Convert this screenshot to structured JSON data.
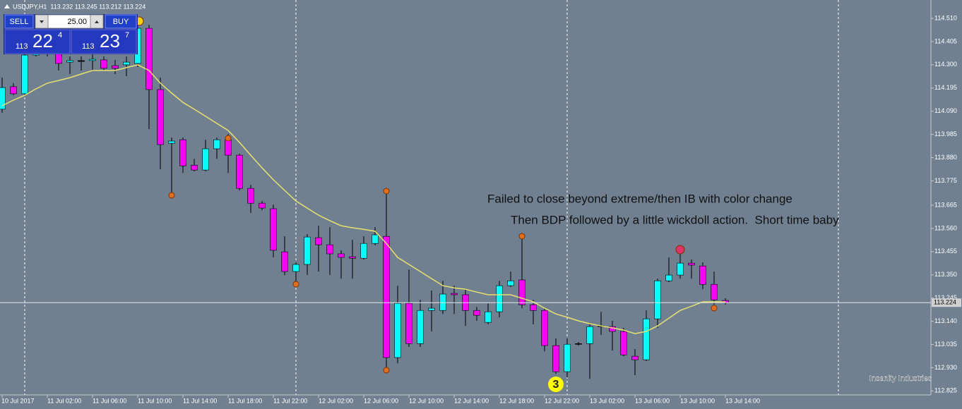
{
  "header": "USDJPY,H1  113.232 113.245 113.212 113.224",
  "trade_panel": {
    "sell": "SELL",
    "buy": "BUY",
    "lots": "25.00",
    "bid": {
      "prefix": "113",
      "big": "22",
      "pip": "4"
    },
    "ask": {
      "prefix": "113",
      "big": "23",
      "pip": "7"
    }
  },
  "watermark": "Insanity Industries",
  "marker_label": "3",
  "chart_data": {
    "type": "candlestick",
    "annotations": [
      "Failed to close beyond extreme/then IB with color change",
      "Then BDP followed by a little wickdoll action.  Short time baby"
    ],
    "categories": [
      "10 Jul 2017",
      null,
      null,
      null,
      "11 Jul 02:00",
      null,
      null,
      null,
      "11 Jul 06:00",
      null,
      null,
      null,
      "11 Jul 10:00",
      null,
      null,
      null,
      "11 Jul 14:00",
      null,
      null,
      null,
      "11 Jul 18:00",
      null,
      null,
      null,
      "11 Jul 22:00",
      null,
      null,
      null,
      "12 Jul 02:00",
      null,
      null,
      null,
      "12 Jul 06:00",
      null,
      null,
      null,
      "12 Jul 10:00",
      null,
      null,
      null,
      "12 Jul 14:00",
      null,
      null,
      null,
      "12 Jul 18:00",
      null,
      null,
      null,
      "12 Jul 22:00",
      null,
      null,
      null,
      "13 Jul 02:00",
      null,
      null,
      null,
      "13 Jul 06:00",
      null,
      null,
      null,
      "13 Jul 10:00",
      null,
      null,
      null,
      "13 Jul 14:00"
    ],
    "open": [
      114.099,
      114.201,
      114.169,
      114.344,
      114.386,
      114.354,
      114.312,
      114.315,
      114.319,
      114.322,
      114.296,
      114.3,
      114.306,
      114.465,
      114.188,
      113.945,
      113.961,
      113.846,
      113.824,
      113.92,
      113.961,
      113.891,
      113.741,
      113.674,
      113.649,
      113.454,
      113.365,
      113.397,
      113.518,
      113.486,
      113.445,
      113.432,
      113.425,
      113.492,
      113.524,
      112.976,
      113.221,
      113.039,
      113.189,
      113.189,
      113.266,
      113.26,
      113.189,
      113.135,
      113.183,
      113.301,
      113.327,
      113.215,
      113.189,
      113.03,
      112.912,
      113.036,
      113.039,
      113.119,
      113.116,
      113.094,
      112.982,
      112.966,
      113.151,
      113.323,
      113.349,
      113.403,
      113.39,
      113.307,
      113.234
    ],
    "high": [
      114.242,
      114.217,
      114.354,
      114.418,
      114.418,
      114.37,
      114.338,
      114.338,
      114.354,
      114.338,
      114.322,
      114.338,
      114.497,
      114.481,
      114.242,
      113.971,
      113.971,
      113.875,
      113.961,
      113.971,
      113.987,
      113.898,
      113.757,
      113.684,
      113.668,
      113.524,
      113.406,
      113.534,
      113.572,
      113.566,
      113.461,
      113.508,
      113.524,
      113.566,
      113.732,
      113.301,
      113.374,
      113.237,
      113.279,
      113.323,
      113.301,
      113.285,
      113.205,
      113.221,
      113.323,
      113.365,
      113.524,
      113.237,
      113.196,
      113.062,
      113.062,
      113.046,
      113.126,
      113.183,
      113.142,
      113.11,
      113.014,
      113.189,
      113.333,
      113.429,
      113.461,
      113.419,
      113.406,
      113.365,
      113.244
    ],
    "low": [
      114.083,
      114.162,
      114.162,
      114.338,
      114.338,
      114.274,
      114.258,
      114.274,
      114.274,
      114.274,
      114.258,
      114.248,
      114.29,
      114.009,
      113.827,
      113.716,
      113.811,
      113.818,
      113.818,
      113.875,
      113.811,
      113.732,
      113.63,
      113.642,
      113.429,
      113.349,
      113.317,
      113.349,
      113.365,
      113.349,
      113.333,
      113.333,
      113.419,
      113.483,
      112.918,
      112.95,
      113.024,
      113.024,
      113.094,
      113.173,
      113.173,
      113.119,
      113.142,
      113.126,
      113.158,
      113.295,
      113.199,
      113.126,
      113.004,
      112.902,
      112.886,
      113.03,
      112.88,
      113.078,
      113.008,
      112.982,
      112.896,
      112.96,
      113.11,
      113.317,
      113.333,
      113.333,
      113.285,
      113.215,
      113.215
    ],
    "close": [
      114.197,
      114.169,
      114.344,
      114.386,
      114.354,
      114.306,
      114.319,
      114.319,
      114.325,
      114.284,
      114.284,
      114.312,
      114.465,
      114.188,
      113.939,
      113.955,
      113.843,
      113.824,
      113.92,
      113.961,
      113.891,
      113.741,
      113.674,
      113.652,
      113.461,
      113.365,
      113.397,
      113.521,
      113.486,
      113.445,
      113.429,
      113.425,
      113.492,
      113.531,
      112.976,
      113.221,
      113.039,
      113.189,
      113.199,
      113.263,
      113.26,
      113.189,
      113.167,
      113.183,
      113.301,
      113.323,
      113.215,
      113.189,
      113.03,
      112.912,
      113.036,
      113.039,
      113.116,
      113.116,
      113.094,
      112.988,
      112.966,
      113.151,
      113.323,
      113.349,
      113.403,
      113.394,
      113.307,
      113.237,
      113.224
    ],
    "ma": [
      114.115,
      114.14,
      114.162,
      114.191,
      114.217,
      114.229,
      114.242,
      114.258,
      114.274,
      114.274,
      114.274,
      114.287,
      114.3,
      114.274,
      114.217,
      114.172,
      114.13,
      114.099,
      114.067,
      114.035,
      114.003,
      113.949,
      113.891,
      113.834,
      113.78,
      113.732,
      113.684,
      113.652,
      113.62,
      113.595,
      113.572,
      113.563,
      113.556,
      113.547,
      113.492,
      113.429,
      113.397,
      113.365,
      113.333,
      113.301,
      113.291,
      113.285,
      113.272,
      113.26,
      113.26,
      113.26,
      113.244,
      113.228,
      113.199,
      113.173,
      113.158,
      113.142,
      113.129,
      113.119,
      113.11,
      113.1,
      113.084,
      113.094,
      113.119,
      113.154,
      113.189,
      113.208,
      113.228,
      113.228,
      113.228
    ],
    "up_color": "#00ffff",
    "down_color": "#ff00ff",
    "ma_color": "#e8e070",
    "current_price": 113.224,
    "ylim": [
      112.807,
      114.593
    ],
    "yticks": [
      {
        "value": 114.51,
        "label": "114.510"
      },
      114.405,
      {
        "value": 114.3,
        "label": "114.300"
      },
      114.195,
      {
        "value": 114.09,
        "label": "114.090"
      },
      113.985,
      {
        "value": 113.88,
        "label": "113.880"
      },
      113.775,
      113.665,
      {
        "value": 113.56,
        "label": "113.560"
      },
      113.455,
      {
        "value": 113.35,
        "label": "113.350"
      },
      113.245,
      {
        "value": 113.14,
        "label": "113.140"
      },
      113.035,
      {
        "value": 112.93,
        "label": "112.930"
      },
      112.825
    ]
  }
}
